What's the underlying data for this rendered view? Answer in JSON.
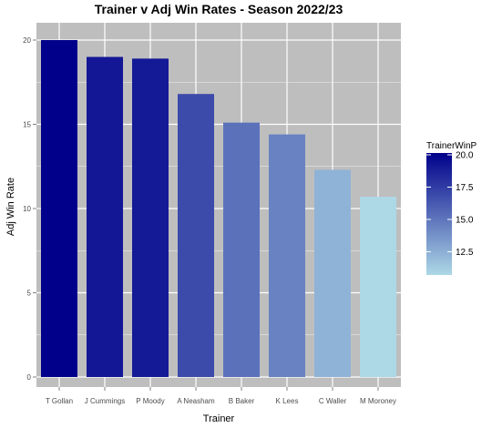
{
  "chart_data": {
    "type": "bar",
    "title": "Trainer v Adj Win Rates - Season 2022/23",
    "xlabel": "Trainer",
    "ylabel": "Adj Win Rate",
    "categories": [
      "T Gollan",
      "J Cummings",
      "P Moody",
      "A Neasham",
      "B Baker",
      "K Lees",
      "C Waller",
      "M Moroney"
    ],
    "values": [
      20.0,
      19.0,
      18.9,
      16.8,
      15.1,
      14.4,
      12.3,
      10.7
    ],
    "ylim": [
      0,
      20
    ],
    "yticks": [
      0,
      5,
      10,
      15,
      20
    ],
    "grid": true,
    "legend": {
      "title": "TrainerWinP",
      "placement": "right",
      "range": [
        10.7,
        20.0
      ],
      "ticks": [
        12.5,
        15.0,
        17.5,
        20.0
      ],
      "tick_labels": [
        "12.5",
        "15.0",
        "17.5",
        "20.0"
      ],
      "color_low": "#add8e6",
      "color_high": "#00008b"
    },
    "colors": {
      "panel_background": "#bebebe",
      "grid_line": "#ffffff",
      "low": "#add8e6",
      "high": "#00008b"
    }
  }
}
